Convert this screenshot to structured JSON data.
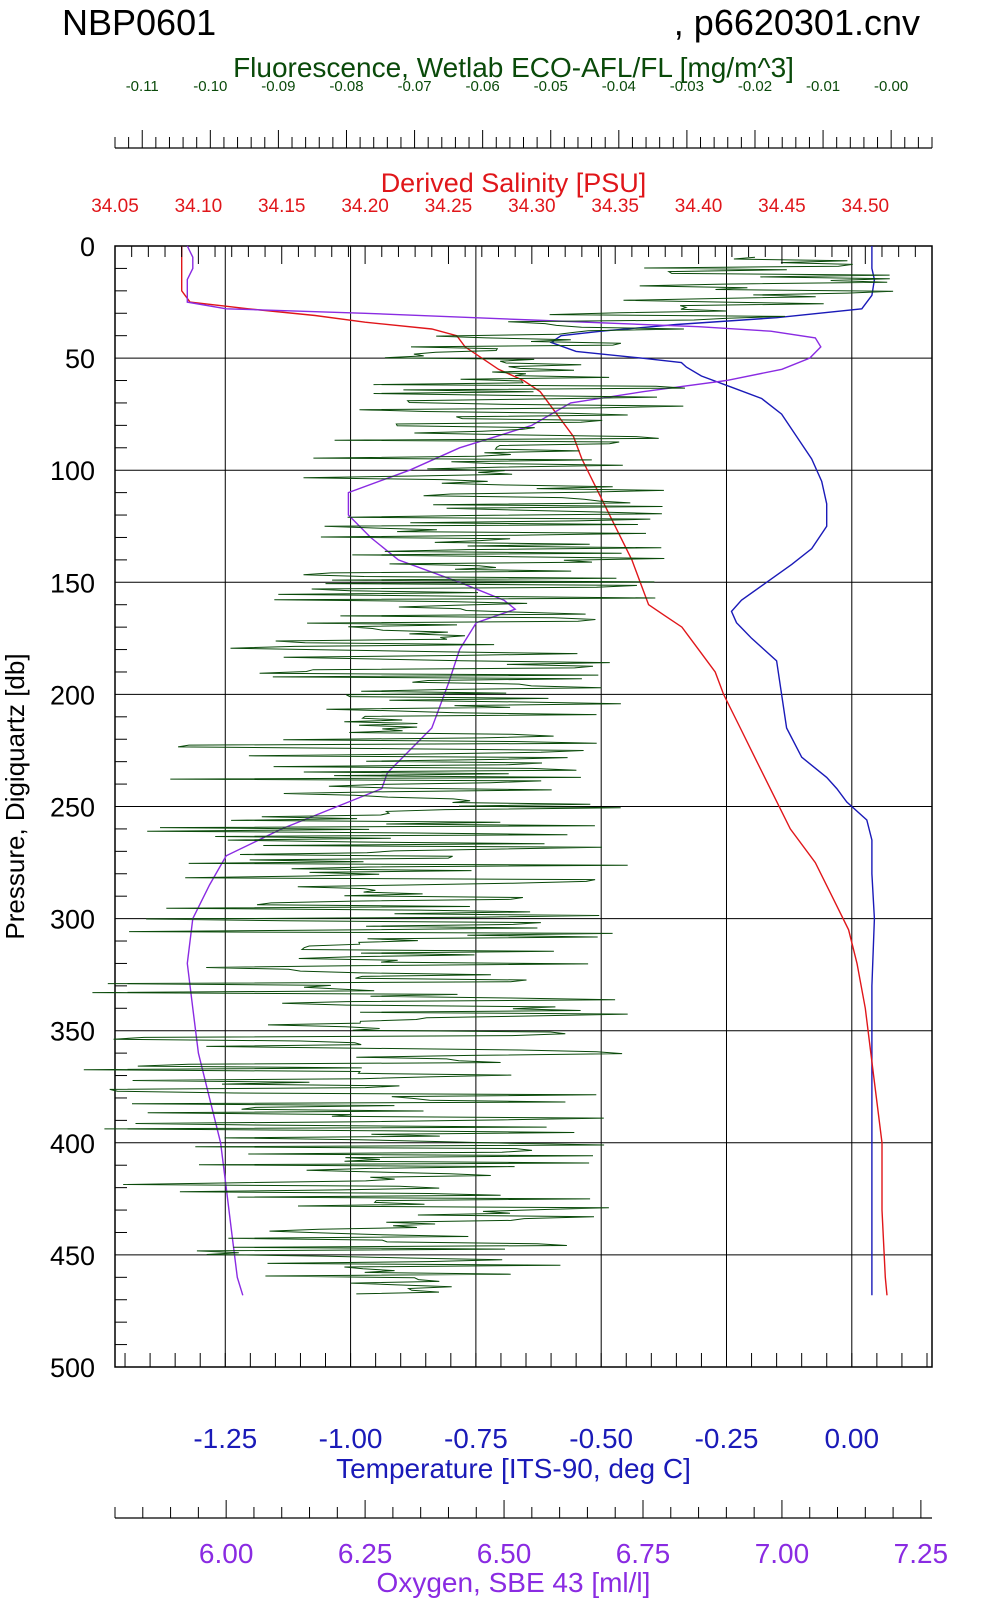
{
  "header": {
    "left": "NBP0601",
    "right": ", p6620301.cnv"
  },
  "chart_data": {
    "type": "line",
    "y_axis": {
      "label": "Pressure, Digiquartz [db]",
      "range": [
        0,
        500
      ],
      "ticks": [
        "0",
        "50",
        "100",
        "150",
        "200",
        "250",
        "300",
        "350",
        "400",
        "450",
        "500"
      ],
      "inverted": true
    },
    "axes": {
      "fluorescence": {
        "label": "Fluorescence, Wetlab ECO-AFL/FL [mg/m^3]",
        "position": "top-1",
        "color": "#0a4a0a",
        "range": [
          -0.114,
          0.006
        ],
        "ticks": [
          "-0.11",
          "-0.10",
          "-0.09",
          "-0.08",
          "-0.07",
          "-0.06",
          "-0.05",
          "-0.04",
          "-0.03",
          "-0.02",
          "-0.01",
          "-0.00"
        ]
      },
      "salinity": {
        "label": "Derived Salinity [PSU]",
        "position": "top-2",
        "color": "#e0161a",
        "range": [
          34.05,
          34.54
        ],
        "ticks": [
          "34.05",
          "34.10",
          "34.15",
          "34.20",
          "34.25",
          "34.30",
          "34.35",
          "34.40",
          "34.45",
          "34.50"
        ]
      },
      "temperature": {
        "label": "Temperature [ITS-90, deg C]",
        "position": "bottom-1",
        "color": "#1a1ab8",
        "range": [
          -1.47,
          0.16
        ],
        "ticks": [
          "-1.25",
          "-1.00",
          "-0.75",
          "-0.50",
          "-0.25",
          "0.00"
        ]
      },
      "oxygen": {
        "label": "Oxygen, SBE 43 [ml/l]",
        "position": "bottom-2",
        "color": "#8a2be2",
        "range": [
          5.8,
          7.27
        ],
        "ticks": [
          "6.00",
          "6.25",
          "6.50",
          "6.75",
          "7.00",
          "7.25"
        ]
      }
    },
    "grid": true,
    "series": [
      {
        "axis": "temperature",
        "color": "#1a1ab8",
        "points": [
          [
            0,
            0.04
          ],
          [
            5,
            0.04
          ],
          [
            10,
            0.04
          ],
          [
            15,
            0.045
          ],
          [
            22,
            0.04
          ],
          [
            28,
            0.02
          ],
          [
            32,
            -0.15
          ],
          [
            35,
            -0.35
          ],
          [
            38,
            -0.5
          ],
          [
            40,
            -0.58
          ],
          [
            43,
            -0.6
          ],
          [
            47,
            -0.55
          ],
          [
            50,
            -0.42
          ],
          [
            52,
            -0.34
          ],
          [
            54,
            -0.33
          ],
          [
            58,
            -0.3
          ],
          [
            63,
            -0.24
          ],
          [
            68,
            -0.18
          ],
          [
            75,
            -0.14
          ],
          [
            85,
            -0.11
          ],
          [
            95,
            -0.08
          ],
          [
            105,
            -0.06
          ],
          [
            115,
            -0.05
          ],
          [
            125,
            -0.05
          ],
          [
            135,
            -0.08
          ],
          [
            142,
            -0.12
          ],
          [
            150,
            -0.17
          ],
          [
            158,
            -0.22
          ],
          [
            163,
            -0.24
          ],
          [
            168,
            -0.23
          ],
          [
            175,
            -0.2
          ],
          [
            185,
            -0.15
          ],
          [
            200,
            -0.14
          ],
          [
            215,
            -0.13
          ],
          [
            228,
            -0.1
          ],
          [
            237,
            -0.05
          ],
          [
            242,
            -0.03
          ],
          [
            248,
            -0.01
          ],
          [
            256,
            0.03
          ],
          [
            265,
            0.04
          ],
          [
            280,
            0.04
          ],
          [
            300,
            0.045
          ],
          [
            330,
            0.04
          ],
          [
            360,
            0.04
          ],
          [
            400,
            0.04
          ],
          [
            440,
            0.04
          ],
          [
            468,
            0.04
          ]
        ]
      },
      {
        "axis": "salinity",
        "color": "#e0161a",
        "points": [
          [
            0,
            34.09
          ],
          [
            10,
            34.09
          ],
          [
            20,
            34.09
          ],
          [
            25,
            34.095
          ],
          [
            28,
            34.13
          ],
          [
            31,
            34.17
          ],
          [
            34,
            34.2
          ],
          [
            37,
            34.24
          ],
          [
            40,
            34.255
          ],
          [
            45,
            34.26
          ],
          [
            50,
            34.27
          ],
          [
            55,
            34.28
          ],
          [
            60,
            34.295
          ],
          [
            65,
            34.305
          ],
          [
            75,
            34.315
          ],
          [
            85,
            34.325
          ],
          [
            95,
            34.33
          ],
          [
            110,
            34.34
          ],
          [
            125,
            34.35
          ],
          [
            140,
            34.36
          ],
          [
            150,
            34.365
          ],
          [
            160,
            34.37
          ],
          [
            165,
            34.38
          ],
          [
            170,
            34.39
          ],
          [
            180,
            34.4
          ],
          [
            190,
            34.41
          ],
          [
            200,
            34.415
          ],
          [
            215,
            34.425
          ],
          [
            230,
            34.435
          ],
          [
            245,
            34.445
          ],
          [
            260,
            34.455
          ],
          [
            275,
            34.47
          ],
          [
            290,
            34.48
          ],
          [
            305,
            34.49
          ],
          [
            320,
            34.495
          ],
          [
            340,
            34.5
          ],
          [
            370,
            34.505
          ],
          [
            400,
            34.51
          ],
          [
            430,
            34.51
          ],
          [
            460,
            34.512
          ],
          [
            468,
            34.513
          ]
        ]
      },
      {
        "axis": "oxygen",
        "color": "#8a2be2",
        "points": [
          [
            0,
            5.93
          ],
          [
            5,
            5.94
          ],
          [
            10,
            5.94
          ],
          [
            15,
            5.93
          ],
          [
            20,
            5.93
          ],
          [
            25,
            5.93
          ],
          [
            28,
            6.0
          ],
          [
            30,
            6.25
          ],
          [
            33,
            6.55
          ],
          [
            36,
            6.85
          ],
          [
            38,
            6.98
          ],
          [
            41,
            7.06
          ],
          [
            45,
            7.07
          ],
          [
            50,
            7.05
          ],
          [
            55,
            7.0
          ],
          [
            60,
            6.9
          ],
          [
            65,
            6.75
          ],
          [
            70,
            6.62
          ],
          [
            80,
            6.55
          ],
          [
            90,
            6.42
          ],
          [
            100,
            6.33
          ],
          [
            110,
            6.22
          ],
          [
            120,
            6.22
          ],
          [
            130,
            6.26
          ],
          [
            140,
            6.31
          ],
          [
            150,
            6.42
          ],
          [
            158,
            6.5
          ],
          [
            162,
            6.52
          ],
          [
            168,
            6.45
          ],
          [
            180,
            6.42
          ],
          [
            195,
            6.4
          ],
          [
            215,
            6.37
          ],
          [
            235,
            6.29
          ],
          [
            242,
            6.28
          ],
          [
            250,
            6.2
          ],
          [
            260,
            6.1
          ],
          [
            272,
            6.0
          ],
          [
            285,
            5.97
          ],
          [
            300,
            5.94
          ],
          [
            320,
            5.93
          ],
          [
            340,
            5.94
          ],
          [
            360,
            5.95
          ],
          [
            380,
            5.97
          ],
          [
            400,
            5.99
          ],
          [
            420,
            6.0
          ],
          [
            440,
            6.01
          ],
          [
            460,
            6.02
          ],
          [
            468,
            6.03
          ]
        ]
      },
      {
        "axis": "fluorescence",
        "color": "#0a4a0a",
        "style": "noisy",
        "points": [
          [
            5,
            -0.02
          ],
          [
            15,
            -0.02
          ],
          [
            25,
            -0.02
          ],
          [
            35,
            -0.04
          ],
          [
            45,
            -0.058
          ],
          [
            60,
            -0.055
          ],
          [
            80,
            -0.056
          ],
          [
            100,
            -0.059
          ],
          [
            120,
            -0.06
          ],
          [
            150,
            -0.061
          ],
          [
            180,
            -0.066
          ],
          [
            210,
            -0.07
          ],
          [
            240,
            -0.073
          ],
          [
            270,
            -0.075
          ],
          [
            300,
            -0.077
          ],
          [
            330,
            -0.078
          ],
          [
            360,
            -0.078
          ],
          [
            390,
            -0.078
          ],
          [
            420,
            -0.076
          ],
          [
            450,
            -0.074
          ],
          [
            468,
            -0.071
          ]
        ],
        "spread": [
          [
            5,
            0.045
          ],
          [
            30,
            0.045
          ],
          [
            40,
            0.035
          ],
          [
            60,
            0.05
          ],
          [
            150,
            0.06
          ],
          [
            250,
            0.07
          ],
          [
            350,
            0.085
          ],
          [
            420,
            0.08
          ],
          [
            468,
            0.04
          ]
        ]
      }
    ]
  }
}
